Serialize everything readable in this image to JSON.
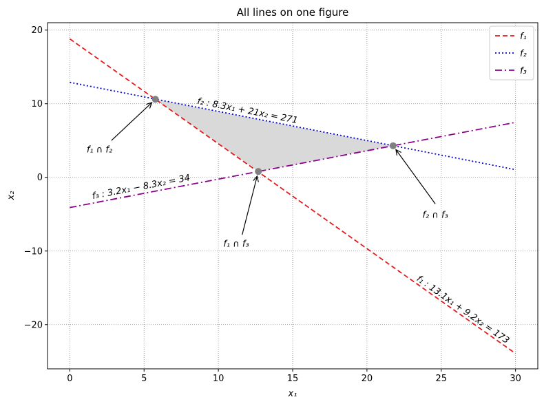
{
  "chart_data": {
    "type": "line",
    "title": "All lines on one figure",
    "xlabel": "x₁",
    "ylabel": "x₂",
    "xlim": [
      -1.5,
      31.5
    ],
    "ylim": [
      -26,
      21
    ],
    "xticks": [
      0,
      5,
      10,
      15,
      20,
      25,
      30
    ],
    "yticks": [
      -20,
      -10,
      0,
      10,
      20
    ],
    "xtick_labels": [
      "0",
      "5",
      "10",
      "15",
      "20",
      "25",
      "30"
    ],
    "ytick_labels": [
      "−20",
      "−10",
      "0",
      "10",
      "20"
    ],
    "grid": true,
    "legend": "top-right",
    "series": [
      {
        "name": "f₁",
        "equation": "f₁ : 13.1x₁ + 9.2x₂ = 173",
        "a": 13.1,
        "b": 9.2,
        "c": 173,
        "color": "#e41a1c",
        "style": "dashed",
        "x": [
          0,
          30
        ]
      },
      {
        "name": "f₂",
        "equation": "f₂ : 8.3x₁ + 21x₂ = 271",
        "a": 8.3,
        "b": 21,
        "c": 271,
        "color": "#0000cc",
        "style": "dotted",
        "x": [
          0,
          30
        ]
      },
      {
        "name": "f₃",
        "equation": "f₃ : 3.2x₁ − 8.3x₂ = 34",
        "a": 3.2,
        "b": -8.3,
        "c": 34,
        "color": "#8b008b",
        "style": "dashdot",
        "x": [
          0,
          30
        ]
      }
    ],
    "intersections": [
      {
        "label": "f₁ ∩ f₂",
        "x": 5.76,
        "y": 10.6
      },
      {
        "label": "f₁ ∩ f₃",
        "x": 12.69,
        "y": 0.8
      },
      {
        "label": "f₂ ∩ f₃",
        "x": 21.76,
        "y": 4.29
      }
    ],
    "shaded_region": {
      "color": "#d9d9d9",
      "vertices": [
        "f₁ ∩ f₂",
        "f₁ ∩ f₃",
        "f₂ ∩ f₃"
      ]
    },
    "marker_color": "#808080"
  }
}
